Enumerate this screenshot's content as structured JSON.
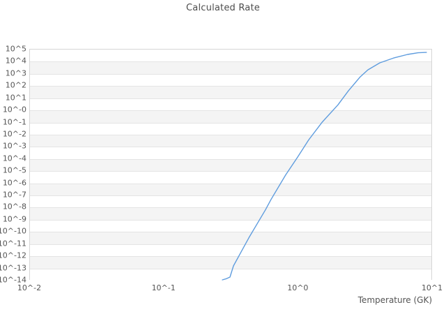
{
  "title": "Calculated Rate",
  "x_axis_title": "Temperature (GK)",
  "colors": {
    "background": "#ffffff",
    "band_gray": "#f4f4f4",
    "gridline": "#e4e4e4",
    "plot_border": "#d6d6d6",
    "text": "#545454",
    "title_text": "#4c4c4c",
    "line": "#5E9CDE"
  },
  "chart_data": {
    "type": "line",
    "title": "Calculated Rate",
    "xlabel": "Temperature (GK)",
    "ylabel": "",
    "x_unit": "GK",
    "x_scale": "log10",
    "y_scale": "log10",
    "xlim_log10": [
      -2,
      1
    ],
    "ylim_log10": [
      -14,
      5
    ],
    "x_tick_labels": [
      "10^-2",
      "10^-1",
      "10^0",
      "10^1"
    ],
    "y_tick_labels": [
      "10^5",
      "10^4",
      "10^3",
      "10^2",
      "10^1",
      "10^-0",
      "10^-1",
      "10^-2",
      "10^-3",
      "10^-4",
      "10^-5",
      "10^-6",
      "10^-7",
      "10^-8",
      "10^-9",
      "10^-10",
      "10^-11",
      "10^-12",
      "10^-13",
      "10^-14"
    ],
    "grid": "horizontal-lines-with-alternating-decade-bands",
    "legend": "none",
    "series": [
      {
        "name": "calculated-rate",
        "color": "#5E9CDE",
        "points_log10": [
          [
            -0.562,
            -14.0
          ],
          [
            -0.531,
            -13.9
          ],
          [
            -0.505,
            -13.77
          ],
          [
            -0.479,
            -12.85
          ],
          [
            -0.422,
            -11.7
          ],
          [
            -0.365,
            -10.55
          ],
          [
            -0.303,
            -9.39
          ],
          [
            -0.241,
            -8.24
          ],
          [
            -0.199,
            -7.38
          ],
          [
            -0.09,
            -5.36
          ],
          [
            -0.002,
            -3.92
          ],
          [
            0.081,
            -2.49
          ],
          [
            0.18,
            -1.05
          ],
          [
            0.299,
            0.39
          ],
          [
            0.377,
            1.55
          ],
          [
            0.465,
            2.7
          ],
          [
            0.522,
            3.27
          ],
          [
            0.611,
            3.85
          ],
          [
            0.714,
            4.25
          ],
          [
            0.818,
            4.54
          ],
          [
            0.896,
            4.68
          ],
          [
            0.958,
            4.71
          ]
        ]
      }
    ]
  }
}
